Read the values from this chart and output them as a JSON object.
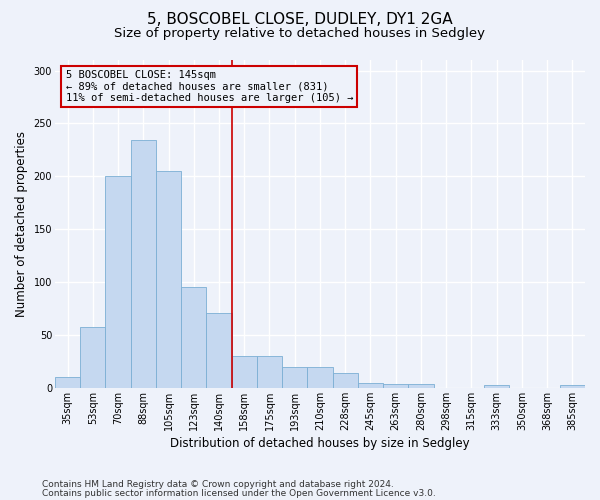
{
  "title1": "5, BOSCOBEL CLOSE, DUDLEY, DY1 2GA",
  "title2": "Size of property relative to detached houses in Sedgley",
  "xlabel": "Distribution of detached houses by size in Sedgley",
  "ylabel": "Number of detached properties",
  "categories": [
    "35sqm",
    "53sqm",
    "70sqm",
    "88sqm",
    "105sqm",
    "123sqm",
    "140sqm",
    "158sqm",
    "175sqm",
    "193sqm",
    "210sqm",
    "228sqm",
    "245sqm",
    "263sqm",
    "280sqm",
    "298sqm",
    "315sqm",
    "333sqm",
    "350sqm",
    "368sqm",
    "385sqm"
  ],
  "values": [
    10,
    58,
    200,
    234,
    205,
    95,
    71,
    30,
    30,
    20,
    20,
    14,
    5,
    4,
    4,
    0,
    0,
    3,
    0,
    0,
    3
  ],
  "bar_color": "#c5d8f0",
  "bar_edge_color": "#7bafd4",
  "vline_x": 6.5,
  "vline_color": "#cc0000",
  "annotation_text": "5 BOSCOBEL CLOSE: 145sqm\n← 89% of detached houses are smaller (831)\n11% of semi-detached houses are larger (105) →",
  "annotation_box_color": "#cc0000",
  "ylim": [
    0,
    310
  ],
  "yticks": [
    0,
    50,
    100,
    150,
    200,
    250,
    300
  ],
  "footer1": "Contains HM Land Registry data © Crown copyright and database right 2024.",
  "footer2": "Contains public sector information licensed under the Open Government Licence v3.0.",
  "bg_color": "#eef2fa",
  "grid_color": "#ffffff",
  "title1_fontsize": 11,
  "title2_fontsize": 9.5,
  "axis_label_fontsize": 8.5,
  "tick_fontsize": 7,
  "footer_fontsize": 6.5,
  "ann_fontsize": 7.5
}
